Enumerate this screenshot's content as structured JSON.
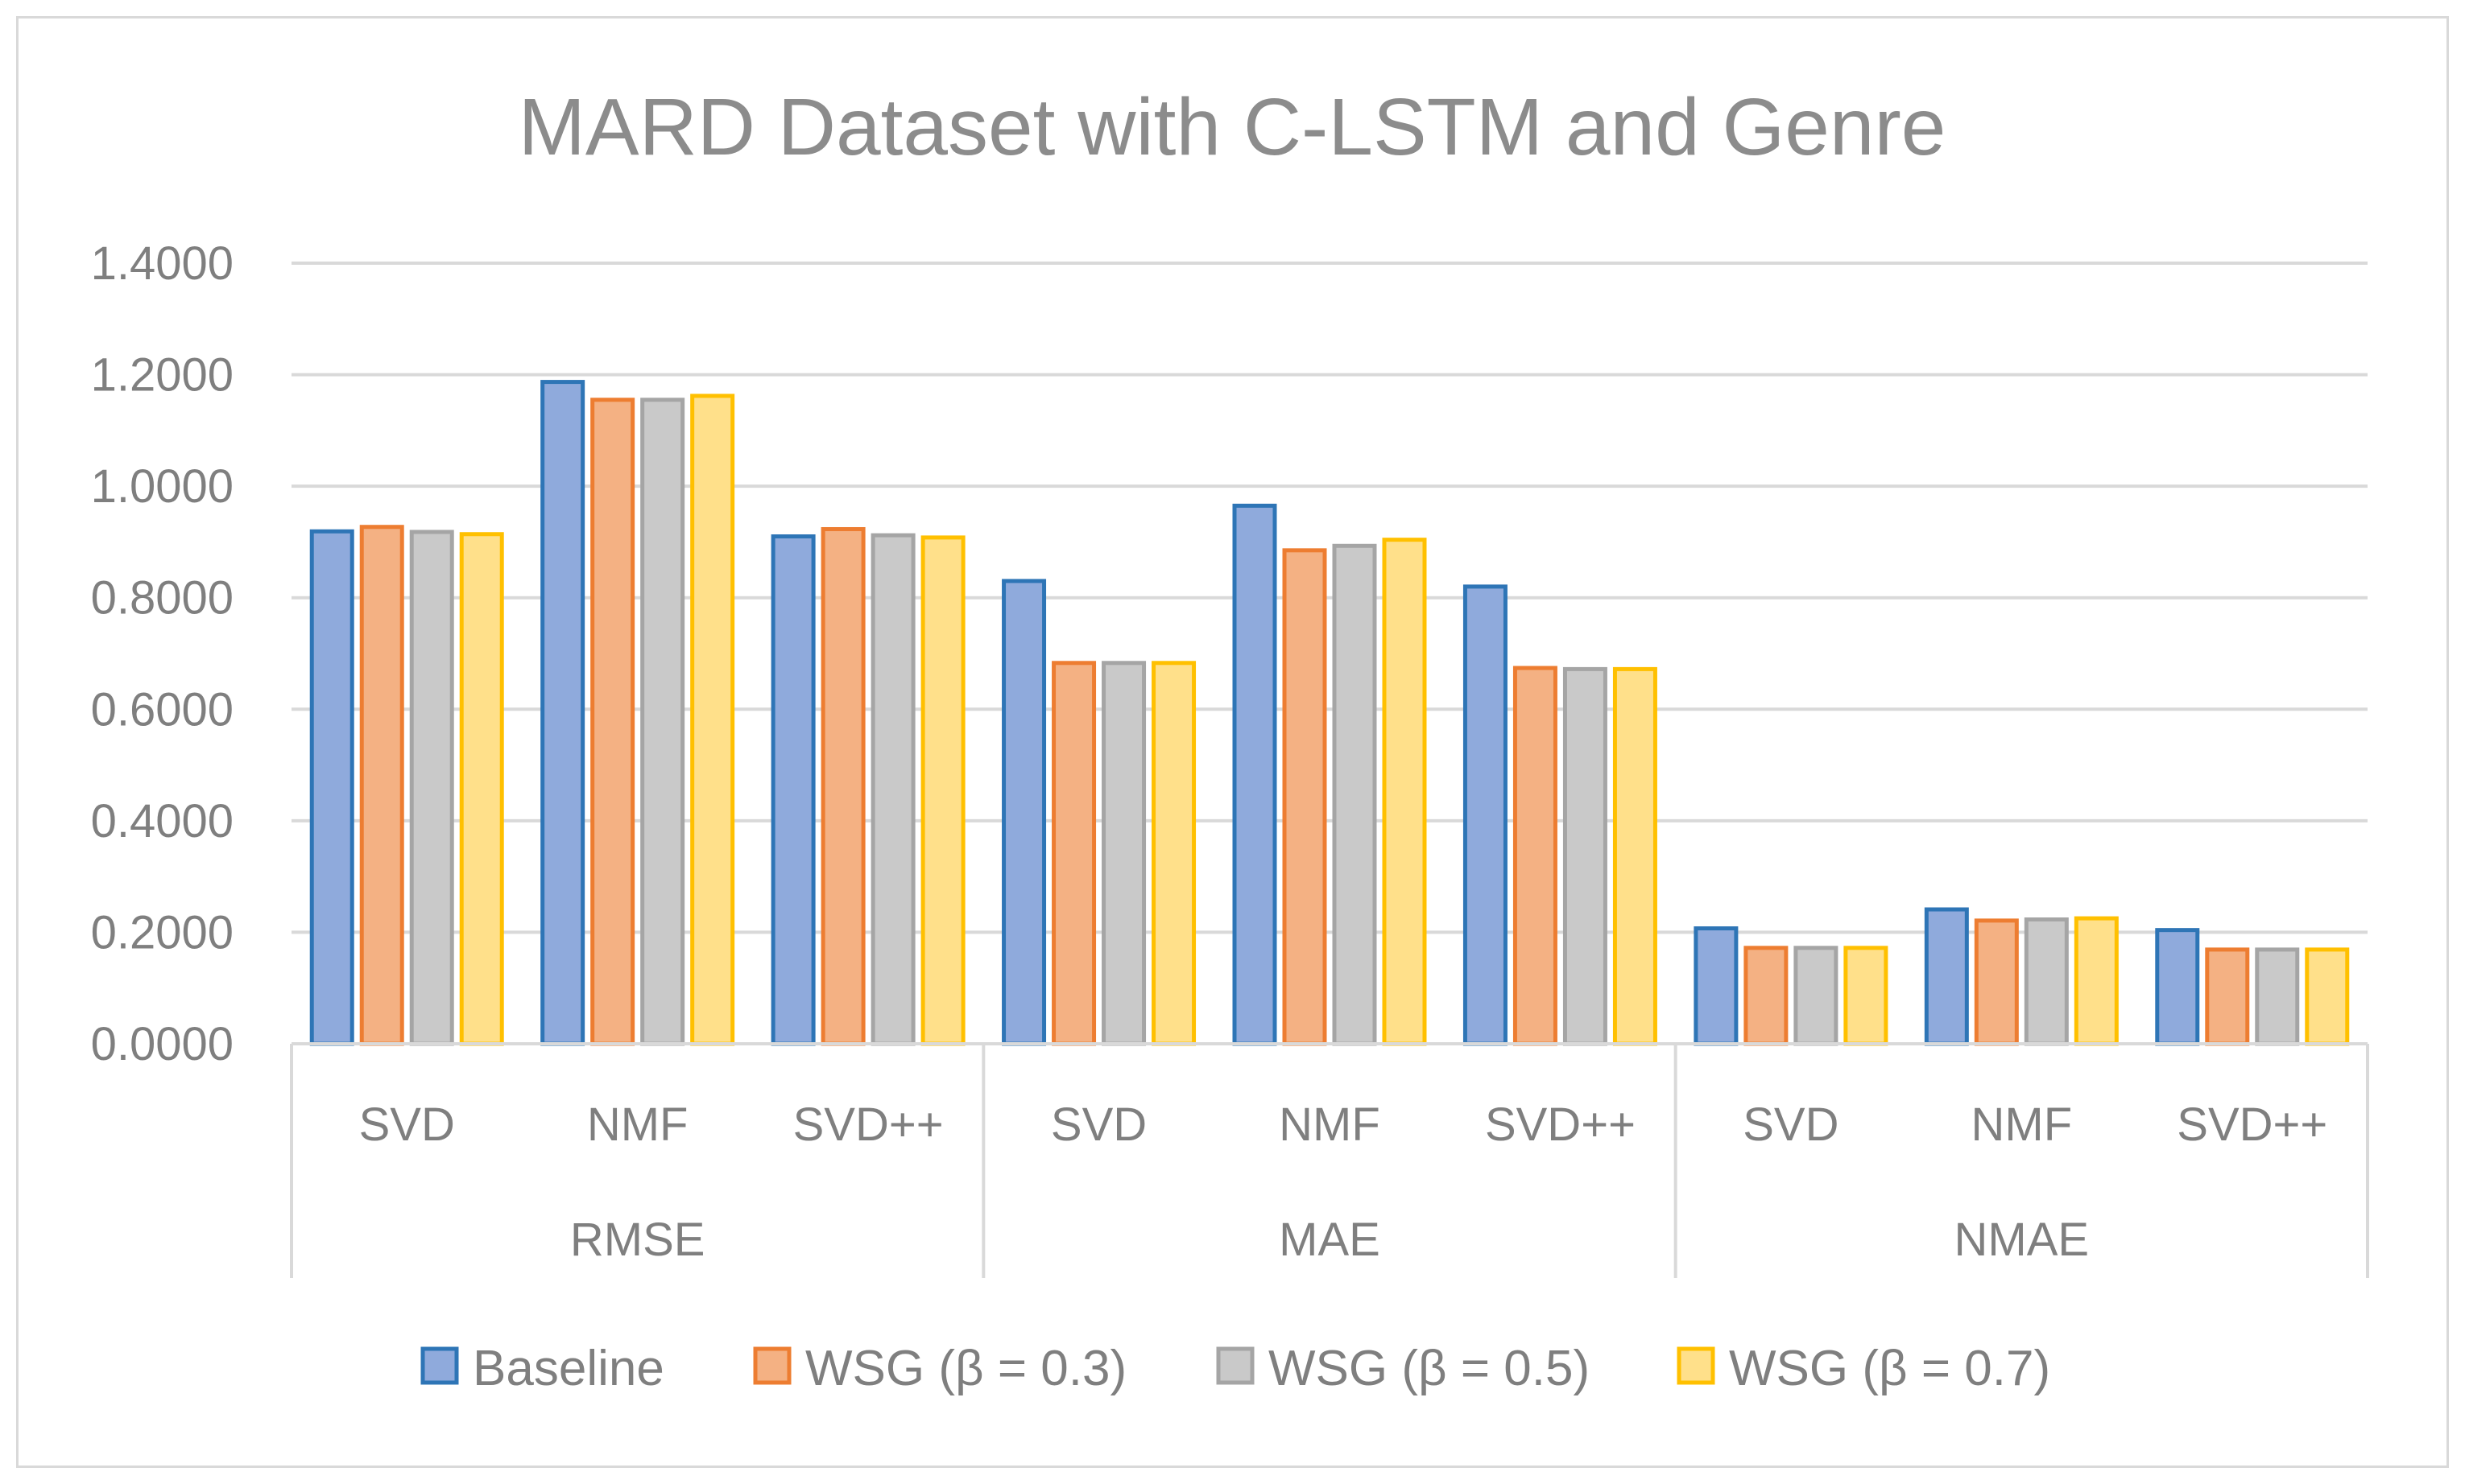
{
  "chart_data": {
    "type": "bar",
    "title": "MARD Dataset with C-LSTM and Genre",
    "xlabel": "",
    "ylabel": "",
    "ylim": [
      0,
      1.4
    ],
    "yticks": [
      "0.0000",
      "0.2000",
      "0.4000",
      "0.6000",
      "0.8000",
      "1.0000",
      "1.2000",
      "1.4000"
    ],
    "ytick_values": [
      0,
      0.2,
      0.4,
      0.6,
      0.8,
      1.0,
      1.2,
      1.4
    ],
    "grid": true,
    "legend_position": "bottom",
    "groups": [
      {
        "name": "RMSE",
        "categories": [
          "SVD",
          "NMF",
          "SVD++"
        ]
      },
      {
        "name": "MAE",
        "categories": [
          "SVD",
          "NMF",
          "SVD++"
        ]
      },
      {
        "name": "NMAE",
        "categories": [
          "SVD",
          "NMF",
          "SVD++"
        ]
      }
    ],
    "categories": [
      "RMSE SVD",
      "RMSE NMF",
      "RMSE SVD++",
      "MAE SVD",
      "MAE NMF",
      "MAE SVD++",
      "NMAE SVD",
      "NMAE NMF",
      "NMAE SVD++"
    ],
    "series": [
      {
        "name": "Baseline",
        "fill": "#8faadc",
        "stroke": "#2e75b6",
        "values": [
          0.919,
          1.187,
          0.91,
          0.83,
          0.965,
          0.82,
          0.207,
          0.241,
          0.204
        ]
      },
      {
        "name": "WSG (β = 0.3)",
        "fill": "#f4b183",
        "stroke": "#ed7d31",
        "values": [
          0.927,
          1.155,
          0.923,
          0.683,
          0.885,
          0.674,
          0.172,
          0.221,
          0.169
        ]
      },
      {
        "name": "WSG (β = 0.5)",
        "fill": "#c9c9c9",
        "stroke": "#a5a5a5",
        "values": [
          0.918,
          1.155,
          0.912,
          0.683,
          0.893,
          0.672,
          0.172,
          0.223,
          0.169
        ]
      },
      {
        "name": "WSG (β = 0.7)",
        "fill": "#ffe08a",
        "stroke": "#ffc000",
        "values": [
          0.914,
          1.162,
          0.908,
          0.683,
          0.904,
          0.672,
          0.172,
          0.225,
          0.169
        ]
      }
    ]
  }
}
